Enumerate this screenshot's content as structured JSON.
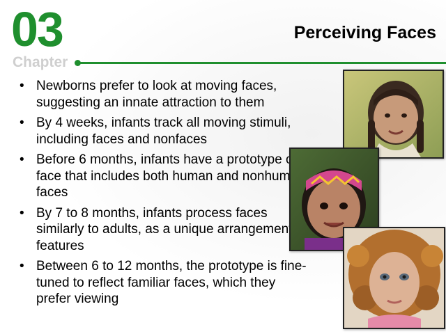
{
  "header": {
    "chapter_number": "03",
    "chapter_label": "Chapter",
    "title": "Perceiving Faces"
  },
  "bullets": [
    "Newborns prefer to look at moving faces, suggesting an innate attraction to them",
    "By 4 weeks, infants track all moving stimuli, including faces and nonfaces",
    "Before 6 months, infants have a prototype of a face that includes both human and nonhuman faces",
    "By 7 to 8 months, infants process faces similarly to adults, as a unique arrangement of features",
    "Between 6 to 12 months, the prototype is fine-tuned to reflect familiar faces, which they prefer viewing"
  ],
  "bullet_symbol": "•",
  "colors": {
    "accent": "#1f8f2e",
    "chapter_label": "#cfcfcf"
  },
  "photos": [
    {
      "subject": "girl with braids smiling"
    },
    {
      "subject": "baby with patterned headband"
    },
    {
      "subject": "curly-haired child portrait"
    }
  ]
}
